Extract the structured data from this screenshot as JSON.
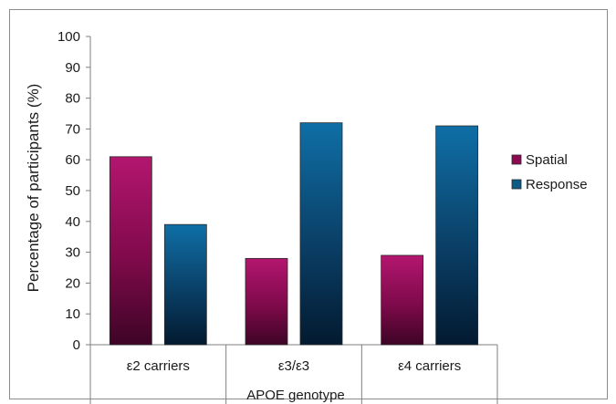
{
  "chart_data": {
    "type": "bar",
    "title": "",
    "xlabel": "APOE genotype",
    "ylabel": "Percentage of participants (%)",
    "categories": [
      "ε2 carriers",
      "ε3/ε3",
      "ε4 carriers"
    ],
    "series": [
      {
        "name": "Spatial",
        "values": [
          61,
          28,
          29
        ],
        "color": "#8b0a52"
      },
      {
        "name": "Response",
        "values": [
          39,
          72,
          71
        ],
        "color": "#0d5a87"
      }
    ],
    "ylim": [
      0,
      100
    ],
    "yticks": [
      0,
      10,
      20,
      30,
      40,
      50,
      60,
      70,
      80,
      90,
      100
    ],
    "grid": false,
    "legend_position": "right"
  }
}
